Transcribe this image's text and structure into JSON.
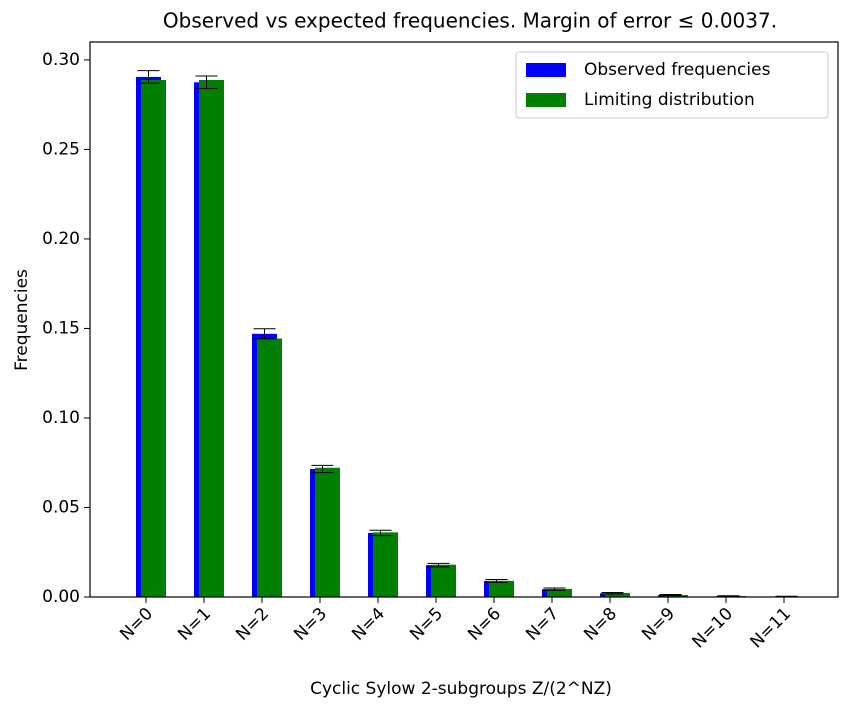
{
  "chart_data": {
    "type": "bar",
    "title": "Observed vs expected frequencies. Margin of error ≤ 0.0037.",
    "xlabel": "Cyclic Sylow 2-subgroups Z/(2^NZ)",
    "ylabel": "Frequencies",
    "categories": [
      "N=0",
      "N=1",
      "N=2",
      "N=3",
      "N=4",
      "N=5",
      "N=6",
      "N=7",
      "N=8",
      "N=9",
      "N=10",
      "N=11"
    ],
    "series": [
      {
        "name": "Observed frequencies",
        "color": "#0000ff",
        "values": [
          0.2905,
          0.2875,
          0.147,
          0.0715,
          0.0358,
          0.0178,
          0.009,
          0.0044,
          0.0021,
          0.0011,
          0.0005,
          0.0003
        ],
        "errors": [
          0.0035,
          0.0035,
          0.0028,
          0.002,
          0.0015,
          0.001,
          0.0008,
          0.0006,
          0.0004,
          0.0003,
          0.0002,
          0.0001
        ]
      },
      {
        "name": "Limiting distribution",
        "color": "#008000",
        "values": [
          0.288788,
          0.288788,
          0.144394,
          0.072197,
          0.036099,
          0.018049,
          0.009025,
          0.004512,
          0.002256,
          0.001128,
          0.000564,
          0.000282
        ]
      }
    ],
    "ylim": [
      0,
      0.31
    ],
    "yticks": [
      {
        "value": 0,
        "label": "0.00"
      },
      {
        "value": 0.05,
        "label": "0.05"
      },
      {
        "value": 0.1,
        "label": "0.10"
      },
      {
        "value": 0.15,
        "label": "0.15"
      },
      {
        "value": 0.2,
        "label": "0.20"
      },
      {
        "value": 0.25,
        "label": "0.25"
      },
      {
        "value": 0.3,
        "label": "0.30"
      }
    ],
    "legend": "upper right"
  }
}
